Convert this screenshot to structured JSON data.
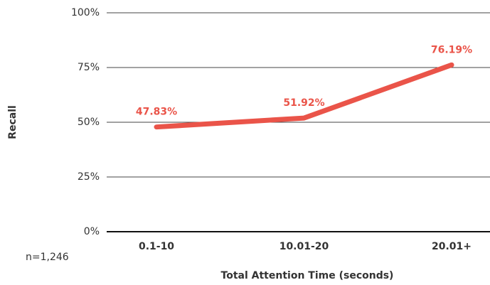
{
  "chart_data": {
    "type": "line",
    "categories": [
      "0.1-10",
      "10.01-20",
      "20.01+"
    ],
    "values": [
      47.83,
      51.92,
      76.19
    ],
    "value_labels": [
      "47.83%",
      "51.92%",
      "76.19%"
    ],
    "color": "#ea5449",
    "ylim": [
      0,
      100
    ],
    "yticks": [
      {
        "value": 0,
        "label": "0%"
      },
      {
        "value": 25,
        "label": "25%"
      },
      {
        "value": 50,
        "label": "50%"
      },
      {
        "value": 75,
        "label": "75%"
      },
      {
        "value": 100,
        "label": "100%"
      }
    ],
    "grid": true,
    "xlabel": "Total Attention Time (seconds)",
    "ylabel": "Recall",
    "annotation": "n=1,246"
  }
}
